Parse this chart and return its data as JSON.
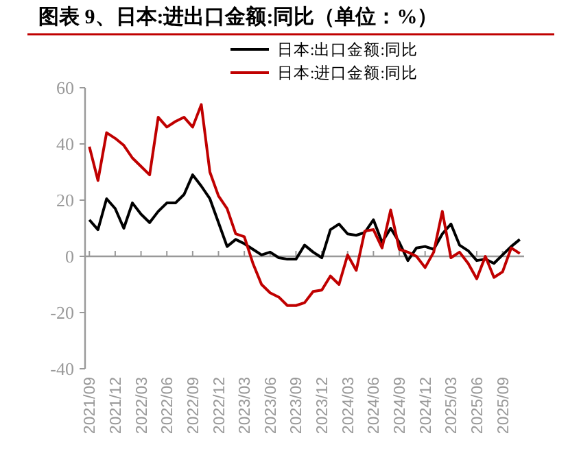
{
  "chart_data": {
    "type": "line",
    "title": "图表 9、日本:进出口金额:同比（单位：%）",
    "categories": [
      "2021/09",
      null,
      null,
      "2021/12",
      null,
      null,
      "2022/03",
      null,
      null,
      "2022/06",
      null,
      null,
      "2022/09",
      null,
      null,
      "2022/12",
      null,
      null,
      "2023/03",
      null,
      null,
      "2023/06",
      null,
      null,
      "2023/09",
      null,
      null,
      "2023/12",
      null,
      null,
      "2024/03",
      null,
      null,
      "2024/06",
      null,
      null,
      "2024/09",
      null,
      null,
      "2024/12",
      null,
      null,
      "2025/03",
      null,
      null,
      "2025/06",
      null,
      null,
      "2025/09",
      null,
      null
    ],
    "series": [
      {
        "name": "日本:出口金额:同比",
        "color": "#000000",
        "values": [
          13,
          9.5,
          20.5,
          17,
          10,
          19,
          15,
          12,
          16,
          19,
          19,
          22,
          29,
          25,
          20.5,
          12,
          3.5,
          6,
          4.5,
          2.5,
          0.5,
          1.5,
          -0.5,
          -1,
          -1,
          4,
          1.5,
          -0.5,
          9.5,
          11.5,
          8,
          7.5,
          8.5,
          13,
          5,
          10,
          5,
          -1.5,
          3,
          3.5,
          2.5,
          8,
          11.5,
          4,
          2,
          -1.5,
          -1,
          -2.5,
          0.5,
          3.5,
          6
        ]
      },
      {
        "name": "日本:进口金额:同比",
        "color": "#c00000",
        "values": [
          39,
          27,
          44,
          42,
          39.5,
          35,
          32,
          29,
          49.5,
          46,
          48,
          49.5,
          46,
          54,
          30,
          21.5,
          17,
          8,
          7,
          -2.5,
          -10,
          -13,
          -14.5,
          -17.5,
          -17.5,
          -16.5,
          -12.5,
          -12,
          -7,
          -10,
          0.5,
          -5,
          9,
          9.5,
          3,
          16.5,
          2.5,
          1.5,
          0,
          -4,
          1.5,
          16,
          -0.5,
          1.5,
          -2.5,
          -8,
          0,
          -7.5,
          -5.5,
          3,
          1
        ]
      }
    ],
    "ylim": [
      -40,
      60
    ],
    "yticks": [
      -40,
      -20,
      0,
      20,
      40,
      60
    ],
    "legend": "top",
    "marker": "none",
    "line_style": "solid"
  }
}
